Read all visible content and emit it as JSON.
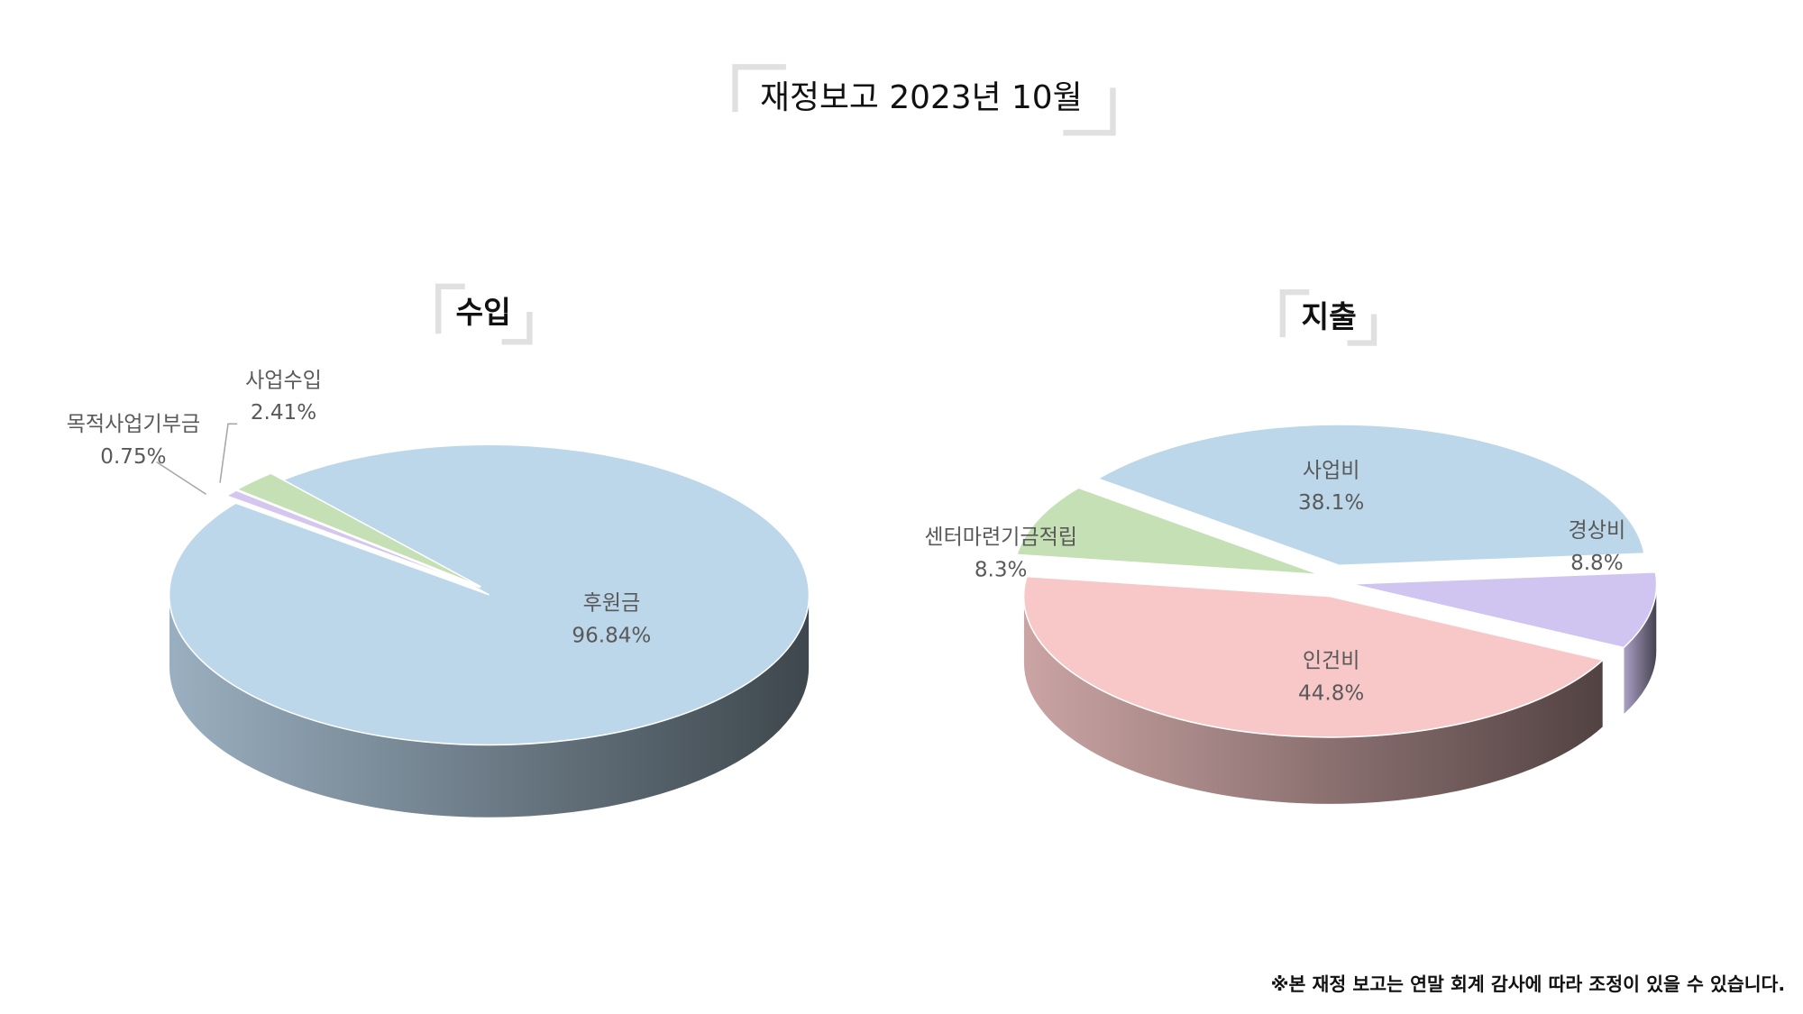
{
  "header": {
    "title": "재정보고 2023년 10월"
  },
  "chart_data": [
    {
      "type": "pie3d",
      "title": "수입",
      "categories": [
        "후원금",
        "목적사업기부금",
        "사업수입"
      ],
      "values": [
        96.84,
        0.75,
        2.41
      ],
      "value_labels": [
        "96.84%",
        "0.75%",
        "2.41%"
      ],
      "colors": [
        "#bcd6ea",
        "#d5c6ee",
        "#c5e0b4"
      ]
    },
    {
      "type": "pie3d",
      "title": "지출",
      "categories": [
        "사업비",
        "경상비",
        "인건비",
        "센터마련기금적립"
      ],
      "values": [
        38.1,
        8.8,
        44.8,
        8.3
      ],
      "value_labels": [
        "38.1%",
        "8.8%",
        "44.8%",
        "8.3%"
      ],
      "colors": [
        "#bcd6ea",
        "#d0c4f0",
        "#f8c8c8",
        "#c5e0b4"
      ]
    }
  ],
  "footnote": "※본 재정 보고는 연말 회계 감사에 따라 조정이 있을 수 있습니다."
}
